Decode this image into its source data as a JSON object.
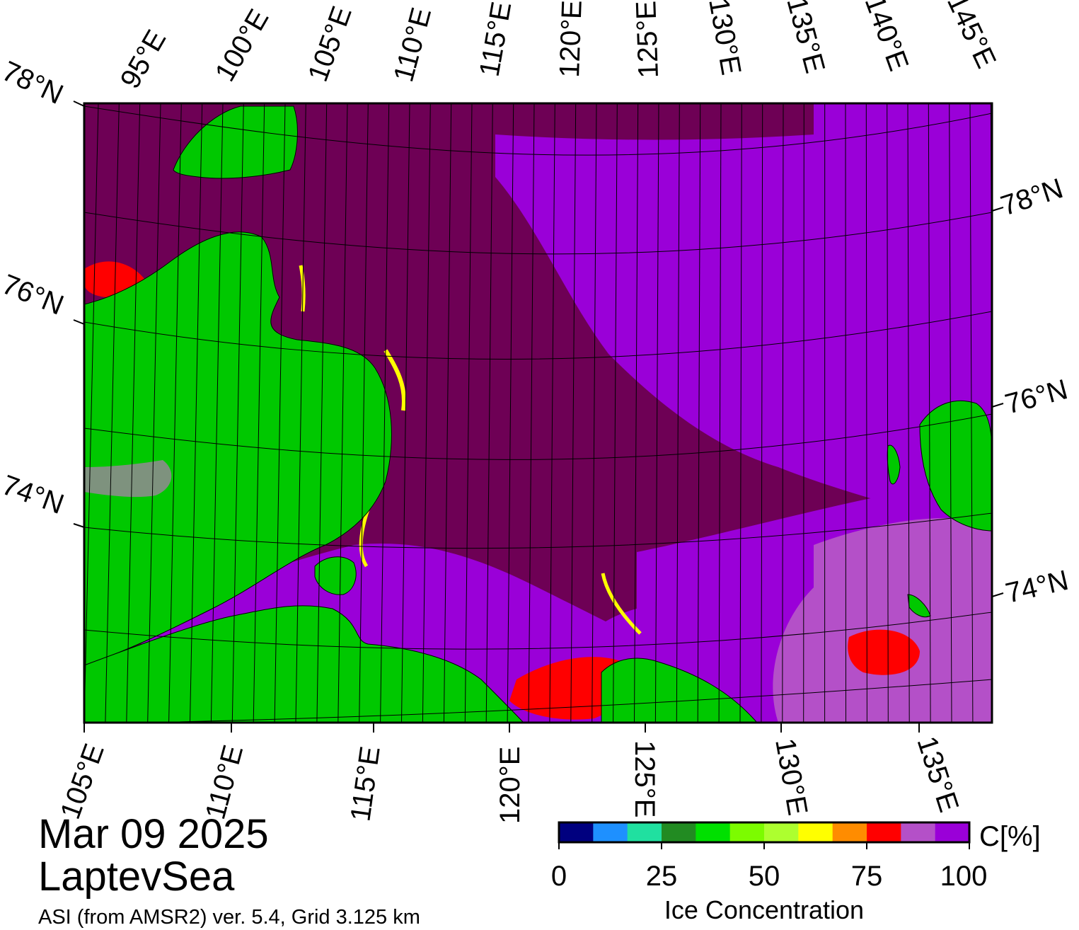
{
  "map": {
    "date": "Mar 09 2025",
    "region": "LaptevSea",
    "credit": "ASI (from AMSR2) ver. 5.4,  Grid 3.125 km",
    "top_lon_labels": [
      "95°E",
      "100°E",
      "105°E",
      "110°E",
      "115°E",
      "120°E",
      "125°E",
      "130°E",
      "135°E",
      "140°E",
      "145°E"
    ],
    "bottom_lon_labels": [
      "105°E",
      "110°E",
      "115°E",
      "120°E",
      "125°E",
      "130°E",
      "135°E"
    ],
    "left_lat_labels": [
      "78°N",
      "76°N",
      "74°N"
    ],
    "right_lat_labels": [
      "78°N",
      "76°N",
      "74°N"
    ],
    "colors": {
      "open_ice_high": "#6e0055",
      "ice_mid": "#9a00d8",
      "ice_light": "#b450c8",
      "land": "#00c800",
      "land_ice_grey": "#8c8c8c",
      "red": "#ff0000",
      "yellow": "#ffff00"
    }
  },
  "colorbar": {
    "title": "Ice Concentration",
    "unit": "C[%]",
    "ticks": [
      "0",
      "25",
      "50",
      "75",
      "100"
    ],
    "segments": [
      "#00007f",
      "#1e90ff",
      "#20e0a0",
      "#228b22",
      "#00e000",
      "#7cfc00",
      "#adff2f",
      "#ffff00",
      "#ff8c00",
      "#ff0000",
      "#b450c8",
      "#9a00d8"
    ]
  }
}
